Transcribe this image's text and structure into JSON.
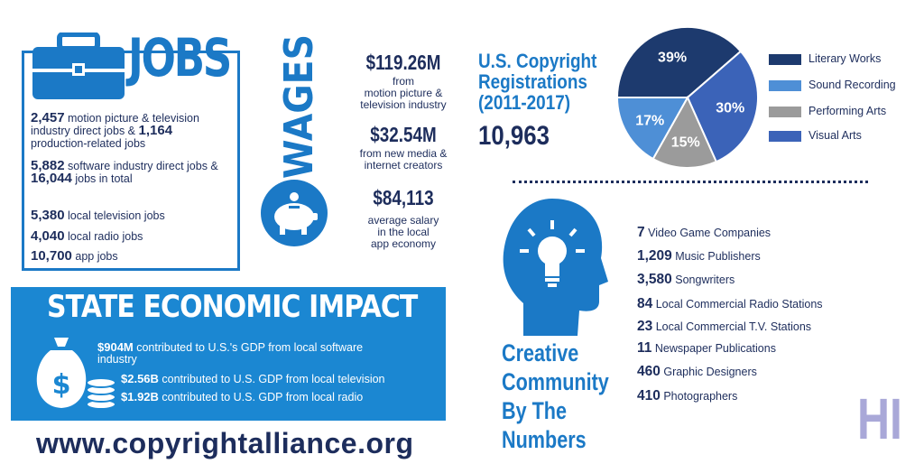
{
  "jobs": {
    "title": "JOBS",
    "items": [
      {
        "n1": "2,457",
        "t1": " motion picture & television industry direct jobs & ",
        "n2": "1,164",
        "t2": " production-related jobs"
      },
      {
        "n1": "5,882",
        "t1": " software industry direct jobs & ",
        "n2": "16,044",
        "t2": " jobs in total"
      },
      {
        "n1": "5,380",
        "t1": " local television jobs"
      },
      {
        "n1": "4,040",
        "t1": " local radio jobs"
      },
      {
        "n1": "10,700",
        "t1": " app jobs"
      }
    ]
  },
  "wages": {
    "title": "WAGES",
    "items": [
      {
        "value": "$119.26M",
        "text1": "from",
        "text2": "motion picture &",
        "text3": "television industry"
      },
      {
        "value": "$32.54M",
        "text1": "from new media &",
        "text2": "internet creators"
      },
      {
        "value": "$84,113",
        "text1": "average salary",
        "text2": "in the local",
        "text3": "app economy"
      }
    ]
  },
  "copyright": {
    "title1": "U.S. Copyright",
    "title2": "Registrations",
    "title3": "(2011-2017)",
    "count": "10,963"
  },
  "chart_data": {
    "type": "pie",
    "categories": [
      "Literary Works",
      "Visual Arts",
      "Performing Arts",
      "Sound Recording"
    ],
    "values": [
      39,
      30,
      15,
      17
    ],
    "labels": [
      "39%",
      "30%",
      "15%",
      "17%"
    ],
    "colors": [
      "#1d3a6e",
      "#3b63b8",
      "#9b9b9b",
      "#4e8fd6"
    ],
    "legend": [
      {
        "label": "Literary Works",
        "color": "#1d3a6e"
      },
      {
        "label": "Sound Recording",
        "color": "#4e8fd6"
      },
      {
        "label": "Performing Arts",
        "color": "#9b9b9b"
      },
      {
        "label": "Visual Arts",
        "color": "#3b63b8"
      }
    ],
    "legend_position": "right"
  },
  "state": {
    "title": "STATE ECONOMIC IMPACT",
    "items": [
      {
        "value": "$904M",
        "text": " contributed to U.S.'s GDP from local software industry"
      },
      {
        "value": "$2.56B",
        "text": " contributed to U.S. GDP from local television"
      },
      {
        "value": "$1.92B",
        "text": " contributed to U.S. GDP from local radio"
      }
    ]
  },
  "website": "www.copyrightalliance.org",
  "creative": {
    "title1": "Creative",
    "title2": "Community",
    "title3": "By The",
    "title4": "Numbers",
    "items": [
      {
        "n": "7",
        "t": " Video Game Companies"
      },
      {
        "n": "1,209",
        "t": " Music Publishers"
      },
      {
        "n": "3,580",
        "t": " Songwriters"
      },
      {
        "n": "84",
        "t": " Local Commercial Radio Stations"
      },
      {
        "n": "23",
        "t": " Local Commercial T.V. Stations"
      },
      {
        "n": "11",
        "t": " Newspaper Publications"
      },
      {
        "n": "460",
        "t": " Graphic Designers"
      },
      {
        "n": "410",
        "t": " Photographers"
      }
    ]
  },
  "state_abbrev": "HI",
  "icons": {
    "jobs": "briefcase-icon",
    "wages": "piggy-bank-icon",
    "state": "money-bag-coins-icon",
    "creative": "head-lightbulb-icon"
  }
}
